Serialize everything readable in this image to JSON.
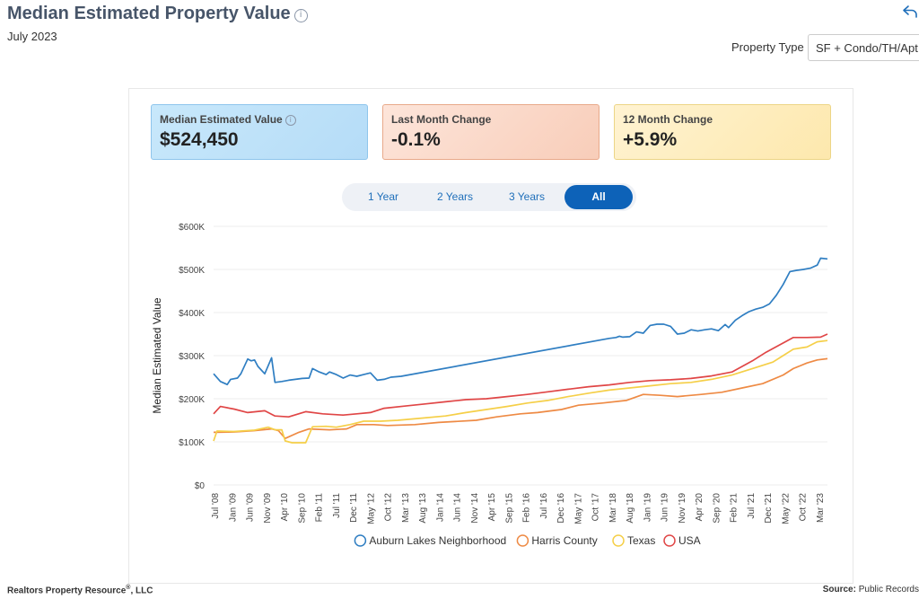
{
  "header": {
    "title": "Median Estimated Property Value",
    "subtitle": "July 2023",
    "property_type_label": "Property Type",
    "property_type_value": "SF + Condo/TH/Apt"
  },
  "cards": [
    {
      "label": "Median Estimated Value",
      "value": "$524,450"
    },
    {
      "label": "Last Month Change",
      "value": "-0.1%"
    },
    {
      "label": "12 Month Change",
      "value": "+5.9%"
    }
  ],
  "tabs": [
    {
      "label": "1 Year"
    },
    {
      "label": "2 Years"
    },
    {
      "label": "3 Years"
    },
    {
      "label": "All"
    }
  ],
  "footer": {
    "left_text": "Realtors Property Resource",
    "left_sup": "®",
    "left_suffix": ", LLC",
    "source_label": "Source:",
    "source_value": "Public Records"
  },
  "chart_data": {
    "type": "line",
    "ylabel": "Median Estimated Value",
    "y_ticks": [
      "$0",
      "$100K",
      "$200K",
      "$300K",
      "$400K",
      "$500K",
      "$600K"
    ],
    "ylim": [
      0,
      600000
    ],
    "x_tick_labels": [
      "Jul '08",
      "Jan '09",
      "Jun '09",
      "Nov '09",
      "Apr '10",
      "Sep '10",
      "Feb '11",
      "Jul '11",
      "Dec '11",
      "May '12",
      "Oct '12",
      "Mar '13",
      "Aug '13",
      "Jan '14",
      "Jun '14",
      "Nov '14",
      "Apr '15",
      "Sep '15",
      "Feb '16",
      "Jul '16",
      "Dec '16",
      "May '17",
      "Oct '17",
      "Mar '18",
      "Aug '18",
      "Jan '19",
      "Jun '19",
      "Nov '19",
      "Apr '20",
      "Sep '20",
      "Feb '21",
      "Jul '21",
      "Dec '21",
      "May '22",
      "Oct '22",
      "Mar '23"
    ],
    "x_range": [
      "2008-07",
      "2023-07"
    ],
    "legend_position": "bottom",
    "series": [
      {
        "name": "Auburn Lakes Neighborhood",
        "color": "#2f7ec2",
        "points": [
          [
            "2008-07",
            258000
          ],
          [
            "2008-09",
            240000
          ],
          [
            "2008-11",
            233000
          ],
          [
            "2008-12",
            245000
          ],
          [
            "2009-02",
            248000
          ],
          [
            "2009-03",
            258000
          ],
          [
            "2009-05",
            292000
          ],
          [
            "2009-06",
            288000
          ],
          [
            "2009-07",
            290000
          ],
          [
            "2009-08",
            275000
          ],
          [
            "2009-10",
            258000
          ],
          [
            "2009-12",
            295000
          ],
          [
            "2010-01",
            238000
          ],
          [
            "2010-03",
            240000
          ],
          [
            "2010-05",
            243000
          ],
          [
            "2010-07",
            245000
          ],
          [
            "2010-09",
            247000
          ],
          [
            "2010-11",
            248000
          ],
          [
            "2010-12",
            270000
          ],
          [
            "2011-02",
            262000
          ],
          [
            "2011-04",
            256000
          ],
          [
            "2011-05",
            262000
          ],
          [
            "2011-07",
            256000
          ],
          [
            "2011-09",
            248000
          ],
          [
            "2011-11",
            255000
          ],
          [
            "2012-01",
            252000
          ],
          [
            "2012-03",
            256000
          ],
          [
            "2012-05",
            260000
          ],
          [
            "2012-07",
            243000
          ],
          [
            "2012-09",
            245000
          ],
          [
            "2012-11",
            250000
          ],
          [
            "2013-02",
            252000
          ],
          [
            "2018-03",
            340000
          ],
          [
            "2018-05",
            342000
          ],
          [
            "2018-06",
            345000
          ],
          [
            "2018-07",
            343000
          ],
          [
            "2018-09",
            344000
          ],
          [
            "2018-11",
            355000
          ],
          [
            "2019-01",
            352000
          ],
          [
            "2019-03",
            370000
          ],
          [
            "2019-05",
            373000
          ],
          [
            "2019-07",
            373000
          ],
          [
            "2019-09",
            368000
          ],
          [
            "2019-11",
            350000
          ],
          [
            "2020-01",
            352000
          ],
          [
            "2020-03",
            360000
          ],
          [
            "2020-05",
            357000
          ],
          [
            "2020-07",
            360000
          ],
          [
            "2020-09",
            362000
          ],
          [
            "2020-11",
            358000
          ],
          [
            "2021-01",
            372000
          ],
          [
            "2021-02",
            365000
          ],
          [
            "2021-04",
            382000
          ],
          [
            "2021-06",
            393000
          ],
          [
            "2021-08",
            402000
          ],
          [
            "2021-10",
            408000
          ],
          [
            "2021-12",
            412000
          ],
          [
            "2022-02",
            420000
          ],
          [
            "2022-04",
            440000
          ],
          [
            "2022-06",
            465000
          ],
          [
            "2022-08",
            495000
          ],
          [
            "2022-10",
            498000
          ],
          [
            "2022-12",
            500000
          ],
          [
            "2023-02",
            503000
          ],
          [
            "2023-04",
            510000
          ],
          [
            "2023-05",
            526000
          ],
          [
            "2023-07",
            524450
          ]
        ]
      },
      {
        "name": "Harris County",
        "color": "#ee8a44",
        "points": [
          [
            "2008-07",
            122000
          ],
          [
            "2009-01",
            123000
          ],
          [
            "2009-07",
            126000
          ],
          [
            "2009-12",
            130000
          ],
          [
            "2010-02",
            126000
          ],
          [
            "2010-04",
            108000
          ],
          [
            "2010-08",
            122000
          ],
          [
            "2010-11",
            130000
          ],
          [
            "2011-05",
            128000
          ],
          [
            "2011-10",
            130000
          ],
          [
            "2012-01",
            140000
          ],
          [
            "2012-06",
            140000
          ],
          [
            "2012-10",
            138000
          ],
          [
            "2013-06",
            140000
          ],
          [
            "2014-01",
            145000
          ],
          [
            "2014-12",
            150000
          ],
          [
            "2015-06",
            158000
          ],
          [
            "2016-01",
            165000
          ],
          [
            "2016-06",
            168000
          ],
          [
            "2017-01",
            175000
          ],
          [
            "2017-06",
            185000
          ],
          [
            "2018-01",
            190000
          ],
          [
            "2018-08",
            196000
          ],
          [
            "2019-01",
            210000
          ],
          [
            "2019-06",
            208000
          ],
          [
            "2019-11",
            205000
          ],
          [
            "2020-06",
            210000
          ],
          [
            "2020-12",
            215000
          ],
          [
            "2021-06",
            225000
          ],
          [
            "2021-12",
            235000
          ],
          [
            "2022-06",
            255000
          ],
          [
            "2022-09",
            270000
          ],
          [
            "2023-01",
            283000
          ],
          [
            "2023-04",
            290000
          ],
          [
            "2023-07",
            293000
          ]
        ]
      },
      {
        "name": "Texas",
        "color": "#f5cf48",
        "points": [
          [
            "2008-07",
            102000
          ],
          [
            "2008-08",
            125000
          ],
          [
            "2009-01",
            124000
          ],
          [
            "2009-07",
            127000
          ],
          [
            "2009-11",
            134000
          ],
          [
            "2010-01",
            128000
          ],
          [
            "2010-03",
            128000
          ],
          [
            "2010-04",
            102000
          ],
          [
            "2010-06",
            98000
          ],
          [
            "2010-10",
            98000
          ],
          [
            "2010-12",
            135000
          ],
          [
            "2011-04",
            136000
          ],
          [
            "2011-07",
            134000
          ],
          [
            "2011-11",
            140000
          ],
          [
            "2012-03",
            148000
          ],
          [
            "2012-08",
            148000
          ],
          [
            "2013-01",
            150000
          ],
          [
            "2013-08",
            155000
          ],
          [
            "2014-03",
            160000
          ],
          [
            "2014-09",
            168000
          ],
          [
            "2015-03",
            175000
          ],
          [
            "2015-09",
            182000
          ],
          [
            "2016-03",
            190000
          ],
          [
            "2016-09",
            196000
          ],
          [
            "2017-03",
            205000
          ],
          [
            "2017-09",
            213000
          ],
          [
            "2018-03",
            220000
          ],
          [
            "2018-09",
            225000
          ],
          [
            "2019-03",
            230000
          ],
          [
            "2019-09",
            235000
          ],
          [
            "2020-03",
            238000
          ],
          [
            "2020-09",
            245000
          ],
          [
            "2021-03",
            255000
          ],
          [
            "2021-09",
            270000
          ],
          [
            "2022-03",
            285000
          ],
          [
            "2022-06",
            300000
          ],
          [
            "2022-09",
            315000
          ],
          [
            "2023-01",
            320000
          ],
          [
            "2023-04",
            332000
          ],
          [
            "2023-07",
            335000
          ]
        ]
      },
      {
        "name": "USA",
        "color": "#e04646",
        "points": [
          [
            "2008-07",
            165000
          ],
          [
            "2008-09",
            182000
          ],
          [
            "2009-01",
            176000
          ],
          [
            "2009-05",
            168000
          ],
          [
            "2009-10",
            172000
          ],
          [
            "2010-01",
            160000
          ],
          [
            "2010-05",
            158000
          ],
          [
            "2010-10",
            170000
          ],
          [
            "2011-03",
            165000
          ],
          [
            "2011-09",
            162000
          ],
          [
            "2012-01",
            165000
          ],
          [
            "2012-05",
            168000
          ],
          [
            "2012-09",
            178000
          ],
          [
            "2013-03",
            183000
          ],
          [
            "2013-09",
            188000
          ],
          [
            "2014-03",
            193000
          ],
          [
            "2014-09",
            198000
          ],
          [
            "2015-03",
            200000
          ],
          [
            "2015-09",
            205000
          ],
          [
            "2016-03",
            210000
          ],
          [
            "2016-09",
            216000
          ],
          [
            "2017-03",
            222000
          ],
          [
            "2017-09",
            228000
          ],
          [
            "2018-03",
            232000
          ],
          [
            "2018-09",
            238000
          ],
          [
            "2019-03",
            242000
          ],
          [
            "2019-09",
            244000
          ],
          [
            "2020-03",
            247000
          ],
          [
            "2020-09",
            253000
          ],
          [
            "2021-03",
            262000
          ],
          [
            "2021-09",
            288000
          ],
          [
            "2022-01",
            308000
          ],
          [
            "2022-05",
            325000
          ],
          [
            "2022-09",
            342000
          ],
          [
            "2023-01",
            342000
          ],
          [
            "2023-05",
            343000
          ],
          [
            "2023-07",
            350000
          ]
        ]
      }
    ]
  }
}
